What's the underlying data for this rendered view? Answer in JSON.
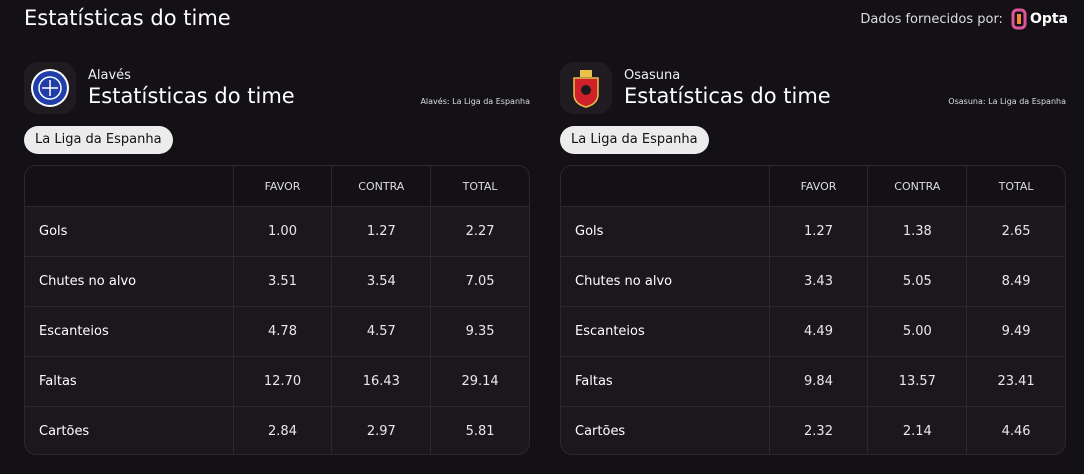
{
  "header": {
    "title": "Estatísticas do time",
    "provider_label": "Dados fornecidos por:",
    "provider_name": "Opta"
  },
  "teams": [
    {
      "name": "Alavés",
      "heading": "Estatísticas do time",
      "competition_note": "Alavés: La Liga da Espanha",
      "competition": "La Liga da Espanha",
      "columns": [
        "FAVOR",
        "CONTRA",
        "TOTAL"
      ],
      "rows": [
        [
          "Gols",
          "1.00",
          "1.27",
          "2.27"
        ],
        [
          "Chutes no alvo",
          "3.51",
          "3.54",
          "7.05"
        ],
        [
          "Escanteios",
          "4.78",
          "4.57",
          "9.35"
        ],
        [
          "Faltas",
          "12.70",
          "16.43",
          "29.14"
        ],
        [
          "Cartões",
          "2.84",
          "2.97",
          "5.81"
        ]
      ]
    },
    {
      "name": "Osasuna",
      "heading": "Estatísticas do time",
      "competition_note": "Osasuna: La Liga da Espanha",
      "competition": "La Liga da Espanha",
      "columns": [
        "FAVOR",
        "CONTRA",
        "TOTAL"
      ],
      "rows": [
        [
          "Gols",
          "1.27",
          "1.38",
          "2.65"
        ],
        [
          "Chutes no alvo",
          "3.43",
          "5.05",
          "8.49"
        ],
        [
          "Escanteios",
          "4.49",
          "5.00",
          "9.49"
        ],
        [
          "Faltas",
          "9.84",
          "13.57",
          "23.41"
        ],
        [
          "Cartões",
          "2.32",
          "2.14",
          "4.46"
        ]
      ]
    }
  ]
}
